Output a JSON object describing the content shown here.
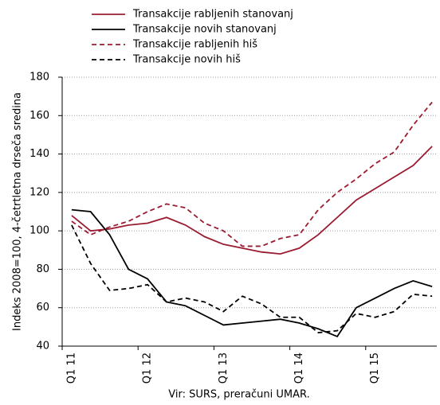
{
  "chart_data": {
    "type": "line",
    "y_label": "Indeks 2008=100, 4-četrtletna drseča sredina",
    "note": "Vir: SURS, preračuni UMAR.",
    "categories": [
      "Q1 11",
      null,
      null,
      null,
      "Q1 12",
      null,
      null,
      null,
      "Q1 13",
      null,
      null,
      null,
      "Q1 14",
      null,
      null,
      null,
      "Q1 15",
      null,
      null,
      null
    ],
    "ylim": [
      40,
      180
    ],
    "yticks": [
      40,
      60,
      80,
      100,
      120,
      140,
      160,
      180
    ],
    "grid": true,
    "series": [
      {
        "name": "Transakcije rabljenih stanovanj",
        "color": "#9b1b30",
        "dashed": false,
        "values": [
          108,
          100,
          101,
          103,
          104,
          107,
          103,
          97,
          93,
          91,
          89,
          88,
          91,
          98,
          107,
          116,
          122,
          128,
          134,
          144
        ]
      },
      {
        "name": "Transakcije novih stanovanj",
        "color": "#000000",
        "dashed": false,
        "values": [
          111,
          110,
          98,
          80,
          75,
          63,
          61,
          56,
          51,
          52,
          53,
          54,
          52,
          49,
          45,
          60,
          65,
          70,
          74,
          71
        ]
      },
      {
        "name": "Transakcije rabljenih hiš",
        "color": "#9b1b30",
        "dashed": true,
        "values": [
          105,
          98,
          102,
          105,
          110,
          114,
          112,
          104,
          100,
          92,
          92,
          96,
          98,
          111,
          120,
          127,
          135,
          141,
          155,
          167
        ]
      },
      {
        "name": "Transakcije novih hiš",
        "color": "#000000",
        "dashed": true,
        "values": [
          103,
          83,
          69,
          70,
          72,
          63,
          65,
          63,
          58,
          66,
          62,
          55,
          55,
          47,
          48,
          57,
          55,
          58,
          67,
          66
        ]
      }
    ]
  }
}
